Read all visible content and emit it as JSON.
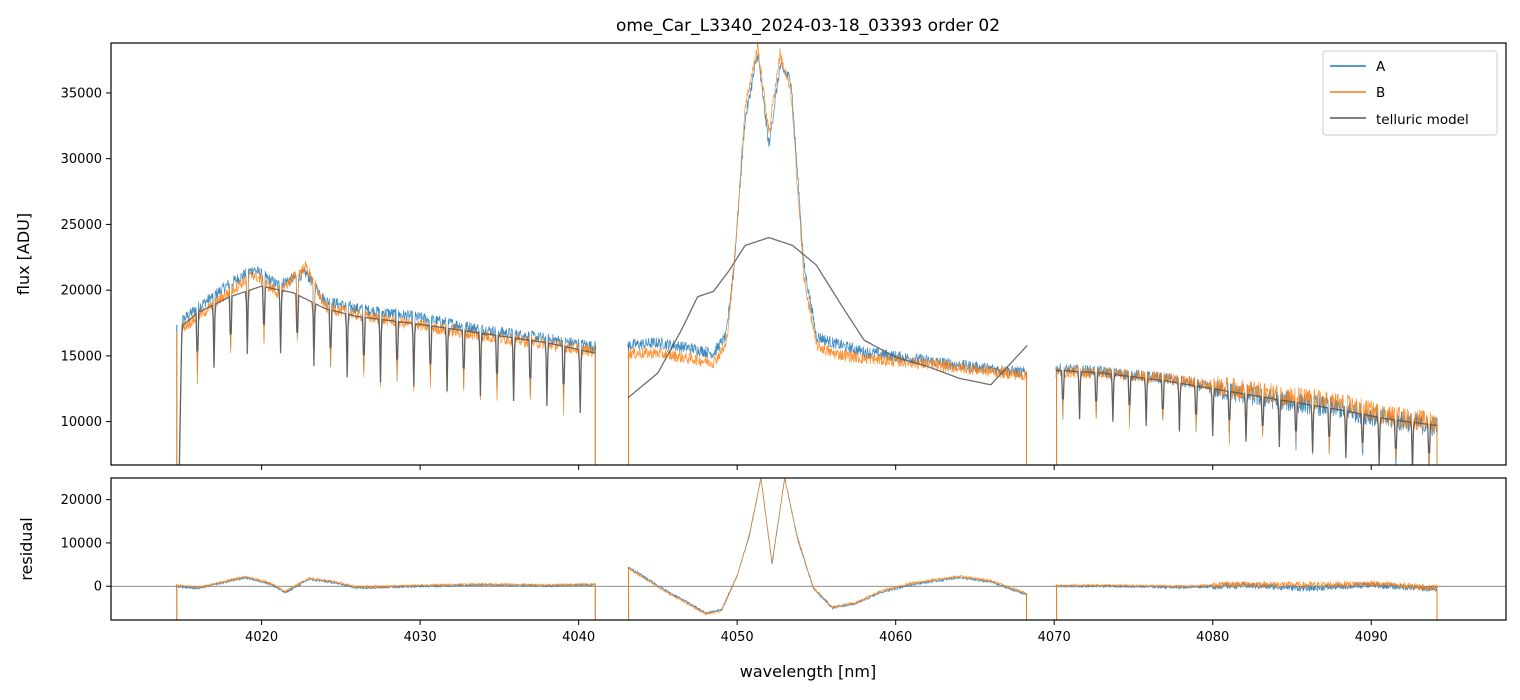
{
  "chart_data": [
    {
      "type": "line",
      "title": "ome_Car_L3340_2024-03-18_03393  order 02",
      "xlabel": "",
      "ylabel": "flux [ADU]",
      "xlim": [
        4010.5,
        4098.5
      ],
      "ylim": [
        6700,
        38800
      ],
      "x_ticks": [
        4020,
        4030,
        4040,
        4050,
        4060,
        4070,
        4080,
        4090
      ],
      "x_tick_labels_shown": false,
      "y_ticks": [
        10000,
        15000,
        20000,
        25000,
        30000,
        35000
      ],
      "y_tick_labels": [
        "10000",
        "15000",
        "20000",
        "25000",
        "30000",
        "35000"
      ],
      "grid": false,
      "legend": "top-right",
      "segments": [
        [
          4014.6,
          4041.1
        ],
        [
          4043.1,
          4068.3
        ],
        [
          4070.1,
          4094.2
        ]
      ],
      "series": [
        {
          "name": "A",
          "color": "#1f77b4",
          "profile": [
            [
              4014.6,
              17300
            ],
            [
              4016,
              18700
            ],
            [
              4018,
              20500
            ],
            [
              4019.5,
              21600
            ],
            [
              4021,
              20400
            ],
            [
              4022.8,
              21300
            ],
            [
              4024,
              19200
            ],
            [
              4026,
              18600
            ],
            [
              4030,
              17900
            ],
            [
              4034,
              17000
            ],
            [
              4038,
              16300
            ],
            [
              4041.1,
              15700
            ],
            [
              4043.1,
              15800
            ],
            [
              4045,
              16000
            ],
            [
              4047,
              15600
            ],
            [
              4048.5,
              15200
            ],
            [
              4049.3,
              16500
            ],
            [
              4049.8,
              22000
            ],
            [
              4050.5,
              33000
            ],
            [
              4051.3,
              38000
            ],
            [
              4052,
              31000
            ],
            [
              4052.7,
              37000
            ],
            [
              4053.4,
              36000
            ],
            [
              4054.2,
              22000
            ],
            [
              4055,
              16500
            ],
            [
              4056,
              16000
            ],
            [
              4058,
              15300
            ],
            [
              4061,
              14800
            ],
            [
              4064,
              14300
            ],
            [
              4068.3,
              13700
            ],
            [
              4070.1,
              14000
            ],
            [
              4073,
              13800
            ],
            [
              4077,
              13300
            ],
            [
              4081,
              12300
            ],
            [
              4085,
              11500
            ],
            [
              4088,
              11000
            ],
            [
              4091,
              10200
            ],
            [
              4094.2,
              9600
            ]
          ]
        },
        {
          "name": "B",
          "color": "#ff7f0e",
          "profile": [
            [
              4014.6,
              16800
            ],
            [
              4016,
              18000
            ],
            [
              4018,
              19900
            ],
            [
              4019.5,
              21200
            ],
            [
              4021,
              19800
            ],
            [
              4022.8,
              21800
            ],
            [
              4024,
              18700
            ],
            [
              4026,
              18100
            ],
            [
              4030,
              17300
            ],
            [
              4034,
              16500
            ],
            [
              4038,
              15900
            ],
            [
              4041.1,
              15300
            ],
            [
              4043.1,
              15200
            ],
            [
              4045,
              15200
            ],
            [
              4047,
              14800
            ],
            [
              4048.5,
              14500
            ],
            [
              4049.3,
              15800
            ],
            [
              4049.8,
              21500
            ],
            [
              4050.5,
              34000
            ],
            [
              4051.3,
              38500
            ],
            [
              4052,
              32000
            ],
            [
              4052.7,
              38000
            ],
            [
              4053.4,
              35000
            ],
            [
              4054.2,
              21000
            ],
            [
              4055,
              15800
            ],
            [
              4056,
              15200
            ],
            [
              4058,
              14800
            ],
            [
              4061,
              14500
            ],
            [
              4064,
              14100
            ],
            [
              4068.3,
              13500
            ],
            [
              4070.1,
              13800
            ],
            [
              4073,
              13700
            ],
            [
              4077,
              13300
            ],
            [
              4081,
              12600
            ],
            [
              4085,
              11900
            ],
            [
              4088,
              11400
            ],
            [
              4091,
              10500
            ],
            [
              4094.2,
              9900
            ]
          ]
        },
        {
          "name": "telluric model",
          "color": "#555555",
          "profile": [
            [
              4014.6,
              16900
            ],
            [
              4016,
              18300
            ],
            [
              4018,
              19500
            ],
            [
              4020,
              20300
            ],
            [
              4022,
              19800
            ],
            [
              4024,
              18600
            ],
            [
              4026,
              18000
            ],
            [
              4030,
              17400
            ],
            [
              4034,
              16700
            ],
            [
              4038,
              16000
            ],
            [
              4041.1,
              15200
            ],
            [
              4043.1,
              11800
            ],
            [
              4045,
              13700
            ],
            [
              4046.5,
              17000
            ],
            [
              4047.5,
              19500
            ],
            [
              4048.5,
              19900
            ],
            [
              4049.5,
              21500
            ],
            [
              4050.5,
              23400
            ],
            [
              4052,
              24000
            ],
            [
              4053.5,
              23400
            ],
            [
              4055,
              21900
            ],
            [
              4056.5,
              19000
            ],
            [
              4058,
              16200
            ],
            [
              4060,
              14900
            ],
            [
              4062,
              14200
            ],
            [
              4064,
              13300
            ],
            [
              4066,
              12800
            ],
            [
              4068.3,
              15800
            ],
            [
              4070.1,
              13900
            ],
            [
              4073,
              13700
            ],
            [
              4077,
              13100
            ],
            [
              4081,
              12300
            ],
            [
              4085,
              11500
            ],
            [
              4088,
              10900
            ],
            [
              4091,
              10200
            ],
            [
              4094.2,
              9700
            ]
          ]
        }
      ]
    },
    {
      "type": "line",
      "title": "",
      "xlabel": "wavelength [nm]",
      "ylabel": "residual",
      "xlim": [
        4010.5,
        4098.5
      ],
      "ylim": [
        -7800,
        25000
      ],
      "x_ticks": [
        4020,
        4030,
        4040,
        4050,
        4060,
        4070,
        4080,
        4090
      ],
      "x_tick_labels": [
        "4020",
        "4030",
        "4040",
        "4050",
        "4060",
        "4070",
        "4080",
        "4090"
      ],
      "y_ticks": [
        0,
        10000,
        20000
      ],
      "y_tick_labels": [
        "0",
        "10000",
        "20000"
      ],
      "zero_line": true,
      "grid": false,
      "segments": [
        [
          4014.6,
          4041.1
        ],
        [
          4043.1,
          4068.3
        ],
        [
          4070.1,
          4094.2
        ]
      ],
      "series": [
        {
          "name": "A",
          "color": "#1f77b4",
          "profile": [
            [
              4014.6,
              0
            ],
            [
              4016,
              -500
            ],
            [
              4017.5,
              800
            ],
            [
              4019,
              2000
            ],
            [
              4020.5,
              600
            ],
            [
              4021.5,
              -1500
            ],
            [
              4023,
              1600
            ],
            [
              4024.5,
              900
            ],
            [
              4026,
              -400
            ],
            [
              4030,
              0
            ],
            [
              4034,
              300
            ],
            [
              4038,
              100
            ],
            [
              4041.1,
              300
            ],
            [
              4043.1,
              4500
            ],
            [
              4044,
              2500
            ],
            [
              4045.5,
              -1000
            ],
            [
              4047,
              -4000
            ],
            [
              4048,
              -6200
            ],
            [
              4049,
              -5500
            ],
            [
              4050,
              2500
            ],
            [
              4050.8,
              12000
            ],
            [
              4051.5,
              25000
            ],
            [
              4052.2,
              5000
            ],
            [
              4053,
              25000
            ],
            [
              4053.8,
              11000
            ],
            [
              4054.8,
              -500
            ],
            [
              4056,
              -5000
            ],
            [
              4057.5,
              -4000
            ],
            [
              4059,
              -1500
            ],
            [
              4061,
              400
            ],
            [
              4064,
              2000
            ],
            [
              4066,
              1000
            ],
            [
              4068.3,
              -2000
            ],
            [
              4070.1,
              0
            ],
            [
              4074,
              0
            ],
            [
              4078,
              -300
            ],
            [
              4082,
              200
            ],
            [
              4086,
              -500
            ],
            [
              4090,
              300
            ],
            [
              4094.2,
              -700
            ]
          ]
        },
        {
          "name": "B",
          "color": "#ff7f0e",
          "profile": [
            [
              4014.6,
              300
            ],
            [
              4016,
              -300
            ],
            [
              4017.5,
              1000
            ],
            [
              4019,
              2200
            ],
            [
              4020.5,
              800
            ],
            [
              4021.5,
              -1200
            ],
            [
              4023,
              1900
            ],
            [
              4024.5,
              1100
            ],
            [
              4026,
              -200
            ],
            [
              4030,
              200
            ],
            [
              4034,
              500
            ],
            [
              4038,
              300
            ],
            [
              4041.1,
              500
            ],
            [
              4043.1,
              4200
            ],
            [
              4044,
              2200
            ],
            [
              4045.5,
              -1300
            ],
            [
              4047,
              -4300
            ],
            [
              4048,
              -6400
            ],
            [
              4049,
              -5800
            ],
            [
              4050,
              2300
            ],
            [
              4050.8,
              12500
            ],
            [
              4051.5,
              25000
            ],
            [
              4052.2,
              5500
            ],
            [
              4053,
              25000
            ],
            [
              4053.8,
              11500
            ],
            [
              4054.8,
              -200
            ],
            [
              4056,
              -4800
            ],
            [
              4057.5,
              -3800
            ],
            [
              4059,
              -1200
            ],
            [
              4061,
              700
            ],
            [
              4064,
              2300
            ],
            [
              4066,
              1300
            ],
            [
              4068.3,
              -1700
            ],
            [
              4070.1,
              200
            ],
            [
              4074,
              200
            ],
            [
              4078,
              0
            ],
            [
              4082,
              500
            ],
            [
              4086,
              300
            ],
            [
              4090,
              600
            ],
            [
              4094.2,
              -400
            ]
          ]
        }
      ]
    }
  ]
}
